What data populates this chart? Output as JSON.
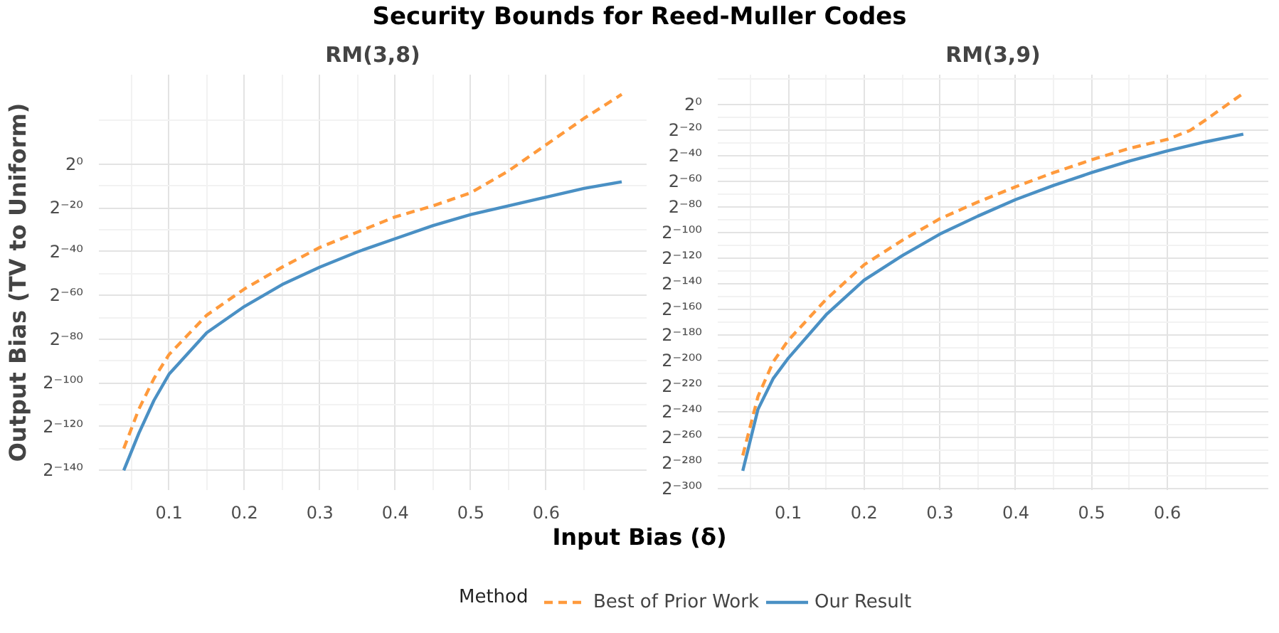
{
  "chart_data": [
    {
      "type": "line",
      "title": "Security Bounds for Reed-Muller Codes",
      "subtitle": "RM(3,8)",
      "xlabel": "Input Bias (δ)",
      "ylabel": "Output Bias (TV to Uniform)",
      "legend_title": "Method",
      "legend": "bottom",
      "grid": true,
      "log": "y",
      "x": [
        0.04,
        0.06,
        0.08,
        0.1,
        0.15,
        0.2,
        0.25,
        0.3,
        0.35,
        0.4,
        0.45,
        0.5,
        0.55,
        0.6,
        0.65,
        0.7
      ],
      "xlim": [
        0.007,
        0.733
      ],
      "xticks": [
        0.1,
        0.2,
        0.3,
        0.4,
        0.5,
        0.6
      ],
      "ylim": [
        1.4013e-45,
        2199023255552
      ],
      "yticks": [
        {
          "value": 1,
          "label": "2⁰"
        },
        {
          "value": 9.5367431640625e-07,
          "label": "2⁻²⁰"
        },
        {
          "value": 9.094947017729282e-13,
          "label": "2⁻⁴⁰"
        },
        {
          "value": 8.673617379884035e-19,
          "label": "2⁻⁶⁰"
        },
        {
          "value": 8.271806125530277e-25,
          "label": "2⁻⁸⁰"
        },
        {
          "value": 7.888609052210118e-31,
          "label": "2⁻¹⁰⁰"
        },
        {
          "value": 7.52316384526264e-37,
          "label": "2⁻¹²⁰"
        },
        {
          "value": 7.174648137343064e-43,
          "label": "2⁻¹⁴⁰"
        }
      ],
      "series": [
        {
          "name": "Best of Prior Work",
          "color": "#ff9a3c",
          "line_style": "dashed",
          "values": [
            7.3468e-40,
            1.9259e-34,
            3.1554e-30,
            6.4623e-27,
            1.6941e-21,
            6.9389e-18,
            7.1054e-15,
            3.638e-12,
            4.6566e-10,
            5.9605e-08,
            1.9073e-06,
            0.00012207,
            0.125,
            512,
            2097152,
            4294967296
          ]
        },
        {
          "name": "Our Result",
          "color": "#4a90c4",
          "line_style": "solid",
          "values": [
            7.1746e-43,
            9.404e-38,
            3.081e-33,
            1.2622e-29,
            6.6174e-24,
            2.7105e-20,
            2.7756e-17,
            7.1054e-15,
            9.095e-13,
            5.8208e-11,
            3.7253e-09,
            1.1921e-07,
            1.9073e-06,
            3.0518e-05,
            0.00048828,
            0.0039063
          ]
        }
      ]
    },
    {
      "type": "line",
      "subtitle": "RM(3,9)",
      "grid": true,
      "log": "y",
      "xlim": [
        0.007,
        0.733
      ],
      "xticks": [
        0.1,
        0.2,
        0.3,
        0.4,
        0.5,
        0.6
      ],
      "ylim": [
        2.4546e-91,
        11863283
      ],
      "yticks": [
        {
          "value": 1,
          "label": "2⁰"
        },
        {
          "value": 9.5367431640625e-07,
          "label": "2⁻²⁰"
        },
        {
          "value": 9.094947017729282e-13,
          "label": "2⁻⁴⁰"
        },
        {
          "value": 8.673617379884035e-19,
          "label": "2⁻⁶⁰"
        },
        {
          "value": 8.271806125530277e-25,
          "label": "2⁻⁸⁰"
        },
        {
          "value": 7.888609052210118e-31,
          "label": "2⁻¹⁰⁰"
        },
        {
          "value": 7.52316384526264e-37,
          "label": "2⁻¹²⁰"
        },
        {
          "value": 7.174648137343064e-43,
          "label": "2⁻¹⁴⁰"
        },
        {
          "value": 6.84227766e-49,
          "label": "2⁻¹⁶⁰"
        },
        {
          "value": 6.5253045e-55,
          "label": "2⁻¹⁸⁰"
        },
        {
          "value": 6.2230153e-61,
          "label": "2⁻²⁰⁰"
        },
        {
          "value": 5.9347299e-67,
          "label": "2⁻²²⁰"
        },
        {
          "value": 5.6597995e-73,
          "label": "2⁻²⁴⁰"
        },
        {
          "value": 5.3976055e-79,
          "label": "2⁻²⁶⁰"
        },
        {
          "value": 5.1475578e-85,
          "label": "2⁻²⁸⁰"
        },
        {
          "value": 4.9090937e-91,
          "label": "2⁻³⁰⁰"
        }
      ],
      "series": [
        {
          "color": "#ff9a3c",
          "line_style": "dashed",
          "x": [
            0.04,
            0.06,
            0.08,
            0.1,
            0.15,
            0.2,
            0.25,
            0.3,
            0.35,
            0.4,
            0.45,
            0.5,
            0.55,
            0.6,
            0.63,
            0.65,
            0.7
          ],
          "values": [
            3.2945e-83,
            2.3183e-69,
            3.1115e-61,
            4.0783e-56,
            1.7516e-46,
            2.351e-38,
            1.2326e-32,
            1.6156e-27,
            1.3235e-23,
            5.421e-20,
            1.1102e-16,
            1.1369e-13,
            5.8208e-11,
            7.4506e-09,
            9.5367e-07,
            0.00024414,
            512
          ]
        },
        {
          "color": "#4a90c4",
          "line_style": "solid",
          "x": [
            0.04,
            0.06,
            0.08,
            0.1,
            0.15,
            0.2,
            0.25,
            0.3,
            0.35,
            0.4,
            0.45,
            0.5,
            0.55,
            0.6,
            0.65,
            0.7
          ],
          "values": [
            8.0431e-87,
            2.2639e-72,
            3.7982e-65,
            2.4892e-60,
            4.2764e-50,
            5.7397e-42,
            3.0093e-36,
            3.9443e-31,
            6.4623e-27,
            5.294e-23,
            1.0842e-19,
            1.1102e-16,
            5.6843e-14,
            1.4552e-11,
            1.8626e-09,
            1.1921e-07
          ]
        }
      ]
    }
  ]
}
